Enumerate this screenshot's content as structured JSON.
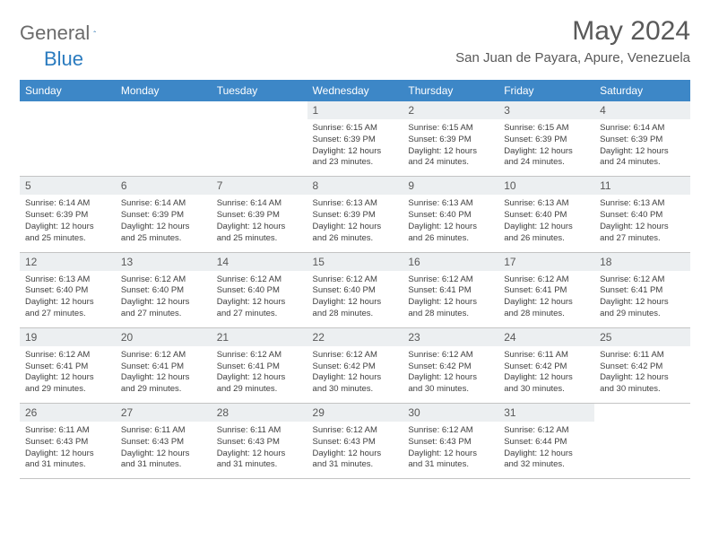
{
  "logo": {
    "text1": "General",
    "text2": "Blue"
  },
  "title": "May 2024",
  "location": "San Juan de Payara, Apure, Venezuela",
  "colors": {
    "header_bg": "#3d87c7",
    "header_text": "#ffffff",
    "daynum_bg": "#eceff1",
    "border": "#c4c4c4",
    "body_text": "#404040",
    "title_text": "#595959",
    "logo_gray": "#6b6b6b",
    "logo_blue": "#2a7bbf",
    "page_bg": "#ffffff"
  },
  "typography": {
    "title_fontsize": 30,
    "location_fontsize": 15,
    "header_fontsize": 12,
    "daynum_fontsize": 12,
    "cell_fontsize": 9.5
  },
  "day_headers": [
    "Sunday",
    "Monday",
    "Tuesday",
    "Wednesday",
    "Thursday",
    "Friday",
    "Saturday"
  ],
  "weeks": [
    [
      {
        "num": "",
        "sunrise": "",
        "sunset": "",
        "daylight": ""
      },
      {
        "num": "",
        "sunrise": "",
        "sunset": "",
        "daylight": ""
      },
      {
        "num": "",
        "sunrise": "",
        "sunset": "",
        "daylight": ""
      },
      {
        "num": "1",
        "sunrise": "Sunrise: 6:15 AM",
        "sunset": "Sunset: 6:39 PM",
        "daylight": "Daylight: 12 hours and 23 minutes."
      },
      {
        "num": "2",
        "sunrise": "Sunrise: 6:15 AM",
        "sunset": "Sunset: 6:39 PM",
        "daylight": "Daylight: 12 hours and 24 minutes."
      },
      {
        "num": "3",
        "sunrise": "Sunrise: 6:15 AM",
        "sunset": "Sunset: 6:39 PM",
        "daylight": "Daylight: 12 hours and 24 minutes."
      },
      {
        "num": "4",
        "sunrise": "Sunrise: 6:14 AM",
        "sunset": "Sunset: 6:39 PM",
        "daylight": "Daylight: 12 hours and 24 minutes."
      }
    ],
    [
      {
        "num": "5",
        "sunrise": "Sunrise: 6:14 AM",
        "sunset": "Sunset: 6:39 PM",
        "daylight": "Daylight: 12 hours and 25 minutes."
      },
      {
        "num": "6",
        "sunrise": "Sunrise: 6:14 AM",
        "sunset": "Sunset: 6:39 PM",
        "daylight": "Daylight: 12 hours and 25 minutes."
      },
      {
        "num": "7",
        "sunrise": "Sunrise: 6:14 AM",
        "sunset": "Sunset: 6:39 PM",
        "daylight": "Daylight: 12 hours and 25 minutes."
      },
      {
        "num": "8",
        "sunrise": "Sunrise: 6:13 AM",
        "sunset": "Sunset: 6:39 PM",
        "daylight": "Daylight: 12 hours and 26 minutes."
      },
      {
        "num": "9",
        "sunrise": "Sunrise: 6:13 AM",
        "sunset": "Sunset: 6:40 PM",
        "daylight": "Daylight: 12 hours and 26 minutes."
      },
      {
        "num": "10",
        "sunrise": "Sunrise: 6:13 AM",
        "sunset": "Sunset: 6:40 PM",
        "daylight": "Daylight: 12 hours and 26 minutes."
      },
      {
        "num": "11",
        "sunrise": "Sunrise: 6:13 AM",
        "sunset": "Sunset: 6:40 PM",
        "daylight": "Daylight: 12 hours and 27 minutes."
      }
    ],
    [
      {
        "num": "12",
        "sunrise": "Sunrise: 6:13 AM",
        "sunset": "Sunset: 6:40 PM",
        "daylight": "Daylight: 12 hours and 27 minutes."
      },
      {
        "num": "13",
        "sunrise": "Sunrise: 6:12 AM",
        "sunset": "Sunset: 6:40 PM",
        "daylight": "Daylight: 12 hours and 27 minutes."
      },
      {
        "num": "14",
        "sunrise": "Sunrise: 6:12 AM",
        "sunset": "Sunset: 6:40 PM",
        "daylight": "Daylight: 12 hours and 27 minutes."
      },
      {
        "num": "15",
        "sunrise": "Sunrise: 6:12 AM",
        "sunset": "Sunset: 6:40 PM",
        "daylight": "Daylight: 12 hours and 28 minutes."
      },
      {
        "num": "16",
        "sunrise": "Sunrise: 6:12 AM",
        "sunset": "Sunset: 6:41 PM",
        "daylight": "Daylight: 12 hours and 28 minutes."
      },
      {
        "num": "17",
        "sunrise": "Sunrise: 6:12 AM",
        "sunset": "Sunset: 6:41 PM",
        "daylight": "Daylight: 12 hours and 28 minutes."
      },
      {
        "num": "18",
        "sunrise": "Sunrise: 6:12 AM",
        "sunset": "Sunset: 6:41 PM",
        "daylight": "Daylight: 12 hours and 29 minutes."
      }
    ],
    [
      {
        "num": "19",
        "sunrise": "Sunrise: 6:12 AM",
        "sunset": "Sunset: 6:41 PM",
        "daylight": "Daylight: 12 hours and 29 minutes."
      },
      {
        "num": "20",
        "sunrise": "Sunrise: 6:12 AM",
        "sunset": "Sunset: 6:41 PM",
        "daylight": "Daylight: 12 hours and 29 minutes."
      },
      {
        "num": "21",
        "sunrise": "Sunrise: 6:12 AM",
        "sunset": "Sunset: 6:41 PM",
        "daylight": "Daylight: 12 hours and 29 minutes."
      },
      {
        "num": "22",
        "sunrise": "Sunrise: 6:12 AM",
        "sunset": "Sunset: 6:42 PM",
        "daylight": "Daylight: 12 hours and 30 minutes."
      },
      {
        "num": "23",
        "sunrise": "Sunrise: 6:12 AM",
        "sunset": "Sunset: 6:42 PM",
        "daylight": "Daylight: 12 hours and 30 minutes."
      },
      {
        "num": "24",
        "sunrise": "Sunrise: 6:11 AM",
        "sunset": "Sunset: 6:42 PM",
        "daylight": "Daylight: 12 hours and 30 minutes."
      },
      {
        "num": "25",
        "sunrise": "Sunrise: 6:11 AM",
        "sunset": "Sunset: 6:42 PM",
        "daylight": "Daylight: 12 hours and 30 minutes."
      }
    ],
    [
      {
        "num": "26",
        "sunrise": "Sunrise: 6:11 AM",
        "sunset": "Sunset: 6:43 PM",
        "daylight": "Daylight: 12 hours and 31 minutes."
      },
      {
        "num": "27",
        "sunrise": "Sunrise: 6:11 AM",
        "sunset": "Sunset: 6:43 PM",
        "daylight": "Daylight: 12 hours and 31 minutes."
      },
      {
        "num": "28",
        "sunrise": "Sunrise: 6:11 AM",
        "sunset": "Sunset: 6:43 PM",
        "daylight": "Daylight: 12 hours and 31 minutes."
      },
      {
        "num": "29",
        "sunrise": "Sunrise: 6:12 AM",
        "sunset": "Sunset: 6:43 PM",
        "daylight": "Daylight: 12 hours and 31 minutes."
      },
      {
        "num": "30",
        "sunrise": "Sunrise: 6:12 AM",
        "sunset": "Sunset: 6:43 PM",
        "daylight": "Daylight: 12 hours and 31 minutes."
      },
      {
        "num": "31",
        "sunrise": "Sunrise: 6:12 AM",
        "sunset": "Sunset: 6:44 PM",
        "daylight": "Daylight: 12 hours and 32 minutes."
      },
      {
        "num": "",
        "sunrise": "",
        "sunset": "",
        "daylight": ""
      }
    ]
  ]
}
